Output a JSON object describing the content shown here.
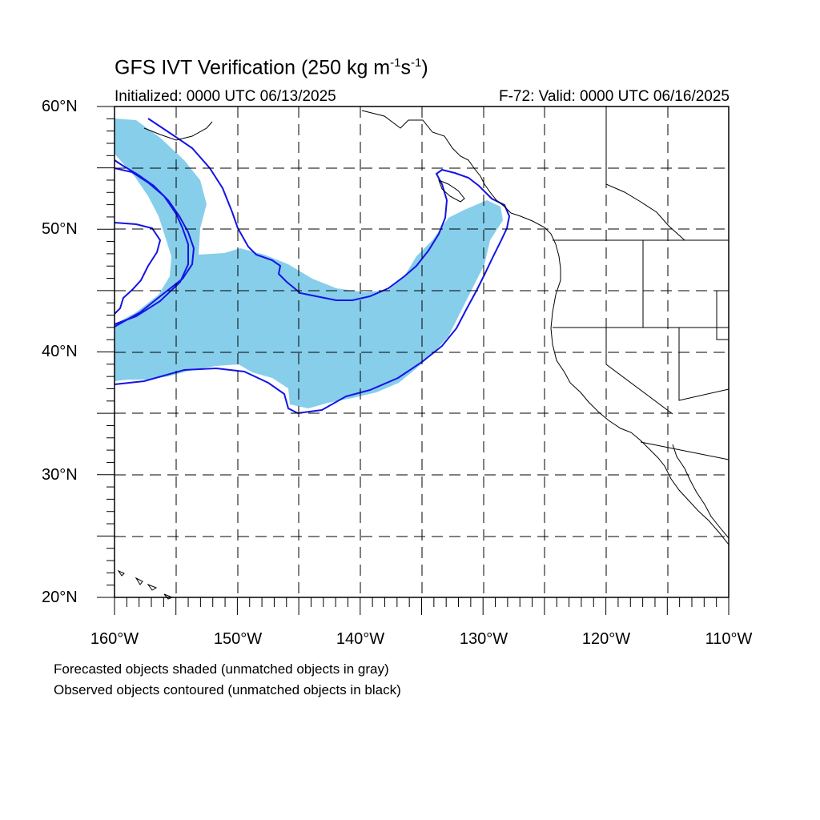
{
  "header": {
    "title_main": "GFS IVT Verification (250 kg m",
    "title_sup1": "-1",
    "title_mid": "s",
    "title_sup2": "-1",
    "title_end": ")",
    "initialized": "Initialized: 0000 UTC 06/13/2025",
    "valid": "F-72: Valid: 0000 UTC 06/16/2025"
  },
  "axes": {
    "lat_labels": [
      {
        "text": "60°N",
        "lat": 60
      },
      {
        "text": "50°N",
        "lat": 50
      },
      {
        "text": "40°N",
        "lat": 40
      },
      {
        "text": "30°N",
        "lat": 30
      },
      {
        "text": "20°N",
        "lat": 20
      }
    ],
    "lon_labels": [
      {
        "text": "160°W",
        "lon": -160
      },
      {
        "text": "150°W",
        "lon": -150
      },
      {
        "text": "140°W",
        "lon": -140
      },
      {
        "text": "130°W",
        "lon": -130
      },
      {
        "text": "120°W",
        "lon": -120
      },
      {
        "text": "110°W",
        "lon": -110
      }
    ],
    "lon_range": [
      -160,
      -110
    ],
    "lat_range": [
      20,
      60
    ],
    "grid_spacing_deg": 5,
    "grid_style": "dashed"
  },
  "legend": {
    "line1": "Forecasted objects shaded (unmatched objects in gray)",
    "line2": "Observed objects contoured (unmatched objects in black)"
  },
  "colors": {
    "forecast_fill": "#87ceeb",
    "observed_contour": "#1414e6",
    "coastline": "#000000",
    "grid": "#000000"
  }
}
